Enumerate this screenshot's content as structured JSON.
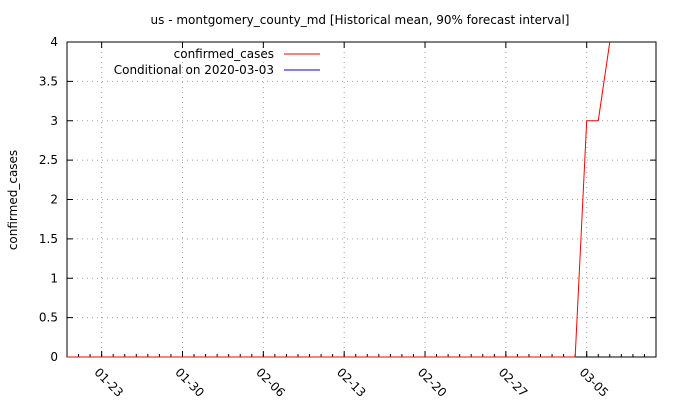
{
  "chart_data": {
    "type": "line",
    "title": "us - montgomery_county_md [Historical mean, 90% forecast interval]",
    "xlabel": "",
    "ylabel": "confirmed_cases",
    "x_ticks": [
      "01-23",
      "01-30",
      "02-06",
      "02-13",
      "02-20",
      "02-27",
      "03-05"
    ],
    "y_ticks": [
      "0",
      "0.5",
      "1",
      "1.5",
      "2",
      "2.5",
      "3",
      "3.5",
      "4"
    ],
    "xlim": [
      "2020-01-20",
      "2020-03-11"
    ],
    "ylim": [
      0,
      4
    ],
    "grid": true,
    "legend_position": "top-left",
    "series": [
      {
        "name": "confirmed_cases",
        "color": "#ff0000",
        "points": [
          {
            "x": "2020-01-20",
            "y": 0
          },
          {
            "x": "2020-03-04",
            "y": 0
          },
          {
            "x": "2020-03-05",
            "y": 3
          },
          {
            "x": "2020-03-06",
            "y": 3
          },
          {
            "x": "2020-03-07",
            "y": 4
          }
        ]
      },
      {
        "name": "Conditional on 2020-03-03",
        "color": "#0000ff",
        "points": []
      }
    ]
  }
}
